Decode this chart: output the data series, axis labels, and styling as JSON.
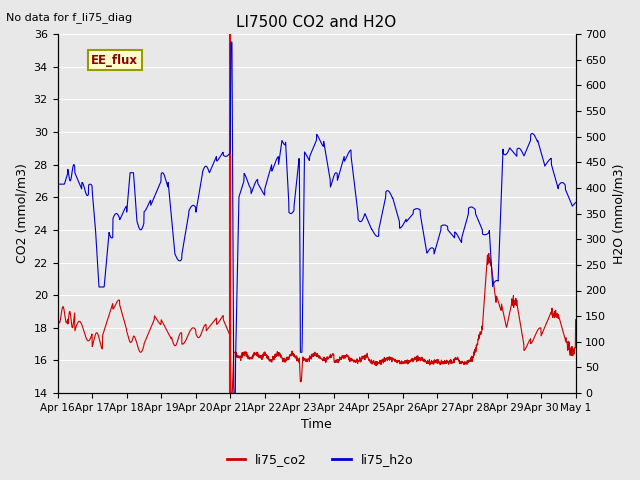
{
  "title": "LI7500 CO2 and H2O",
  "top_left_text": "No data for f_li75_diag",
  "xlabel": "Time",
  "ylabel_left": "CO2 (mmol/m3)",
  "ylabel_right": "H2O (mmol/m3)",
  "ylim_left": [
    14,
    36
  ],
  "ylim_right": [
    0,
    700
  ],
  "yticks_left": [
    14,
    16,
    18,
    20,
    22,
    24,
    26,
    28,
    30,
    32,
    34,
    36
  ],
  "yticks_right": [
    0,
    50,
    100,
    150,
    200,
    250,
    300,
    350,
    400,
    450,
    500,
    550,
    600,
    650,
    700
  ],
  "bg_color": "#e8e8e8",
  "grid_color": "white",
  "co2_color": "#cc0000",
  "h2o_color": "#0000cc",
  "vline_color": "red",
  "vline_x": 5.0,
  "ee_flux_label": "EE_flux",
  "ee_flux_bg": "#ffffcc",
  "ee_flux_border": "#999900",
  "legend_labels": [
    "li75_co2",
    "li75_h2o"
  ],
  "x_tick_labels": [
    "Apr 16",
    "Apr 17",
    "Apr 18",
    "Apr 19",
    "Apr 20",
    "Apr 21",
    "Apr 22",
    "Apr 23",
    "Apr 24",
    "Apr 25",
    "Apr 26",
    "Apr 27",
    "Apr 28",
    "Apr 29",
    "Apr 30",
    "May 1"
  ],
  "n_days": 15
}
